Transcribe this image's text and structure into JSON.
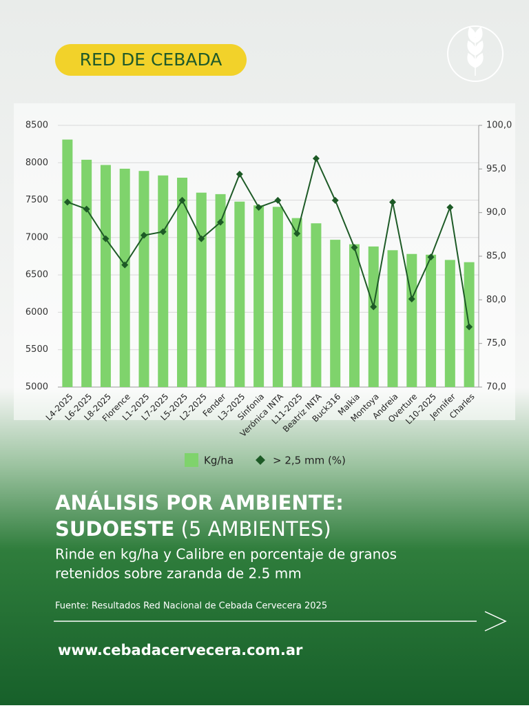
{
  "badge": "RED DE CEBADA",
  "headline": {
    "line1": "ANÁLISIS POR AMBIENTE:",
    "line2_bold": "SUDOESTE",
    "line2_light": "(5 AMBIENTES)"
  },
  "subtitle": [
    "Rinde en kg/ha y Calibre en porcentaje de granos",
    "retenidos sobre zaranda de 2.5 mm"
  ],
  "source": "Fuente: Resultados Red Nacional de Cebada Cervecera 2025",
  "url": "www.cebadacervecera.com.ar",
  "chart_data": {
    "type": "bar",
    "categories": [
      "L4-2025",
      "L6-2025",
      "L8-2025",
      "Florence",
      "L1-2025",
      "L7-2025",
      "L5-2025",
      "L2-2025",
      "Fender",
      "L3-2025",
      "Sinfonia",
      "Verónica INTA",
      "L11-2025",
      "Beatriz INTA",
      "Buck316",
      "Malkia",
      "Montoya",
      "Andreia",
      "Overture",
      "L10-2025",
      "Jennifer",
      "Charles"
    ],
    "series": [
      {
        "name": "Kg/ha",
        "type": "bar",
        "color": "#7fd36c",
        "values": [
          8310,
          8040,
          7970,
          7920,
          7890,
          7830,
          7800,
          7600,
          7580,
          7480,
          7430,
          7410,
          7260,
          7190,
          6970,
          6910,
          6880,
          6830,
          6780,
          6770,
          6700,
          6670
        ]
      },
      {
        "name": "> 2,5 mm (%)",
        "type": "line",
        "axis": "y2",
        "color": "#1d5a26",
        "values": [
          91.2,
          90.4,
          87.0,
          84.0,
          87.4,
          87.8,
          91.4,
          87.0,
          88.9,
          94.4,
          90.6,
          91.4,
          87.6,
          96.2,
          91.4,
          86.0,
          79.2,
          91.2,
          80.1,
          84.9,
          90.6,
          76.9
        ]
      }
    ],
    "ylim": [
      5000,
      8500
    ],
    "yticks": [
      5000,
      5500,
      6000,
      6500,
      7000,
      7500,
      8000,
      8500
    ],
    "y2lim": [
      70,
      100
    ],
    "y2ticks": [
      {
        "value": 70,
        "label": "70,0"
      },
      {
        "value": 75,
        "label": "75,0"
      },
      {
        "value": 80,
        "label": "80,0"
      },
      {
        "value": 85,
        "label": "85,0"
      },
      {
        "value": 90,
        "label": "90,0"
      },
      {
        "value": 95,
        "label": "95,0"
      },
      {
        "value": 100,
        "label": "100,0"
      }
    ],
    "grid": true,
    "legend": "bottom"
  }
}
